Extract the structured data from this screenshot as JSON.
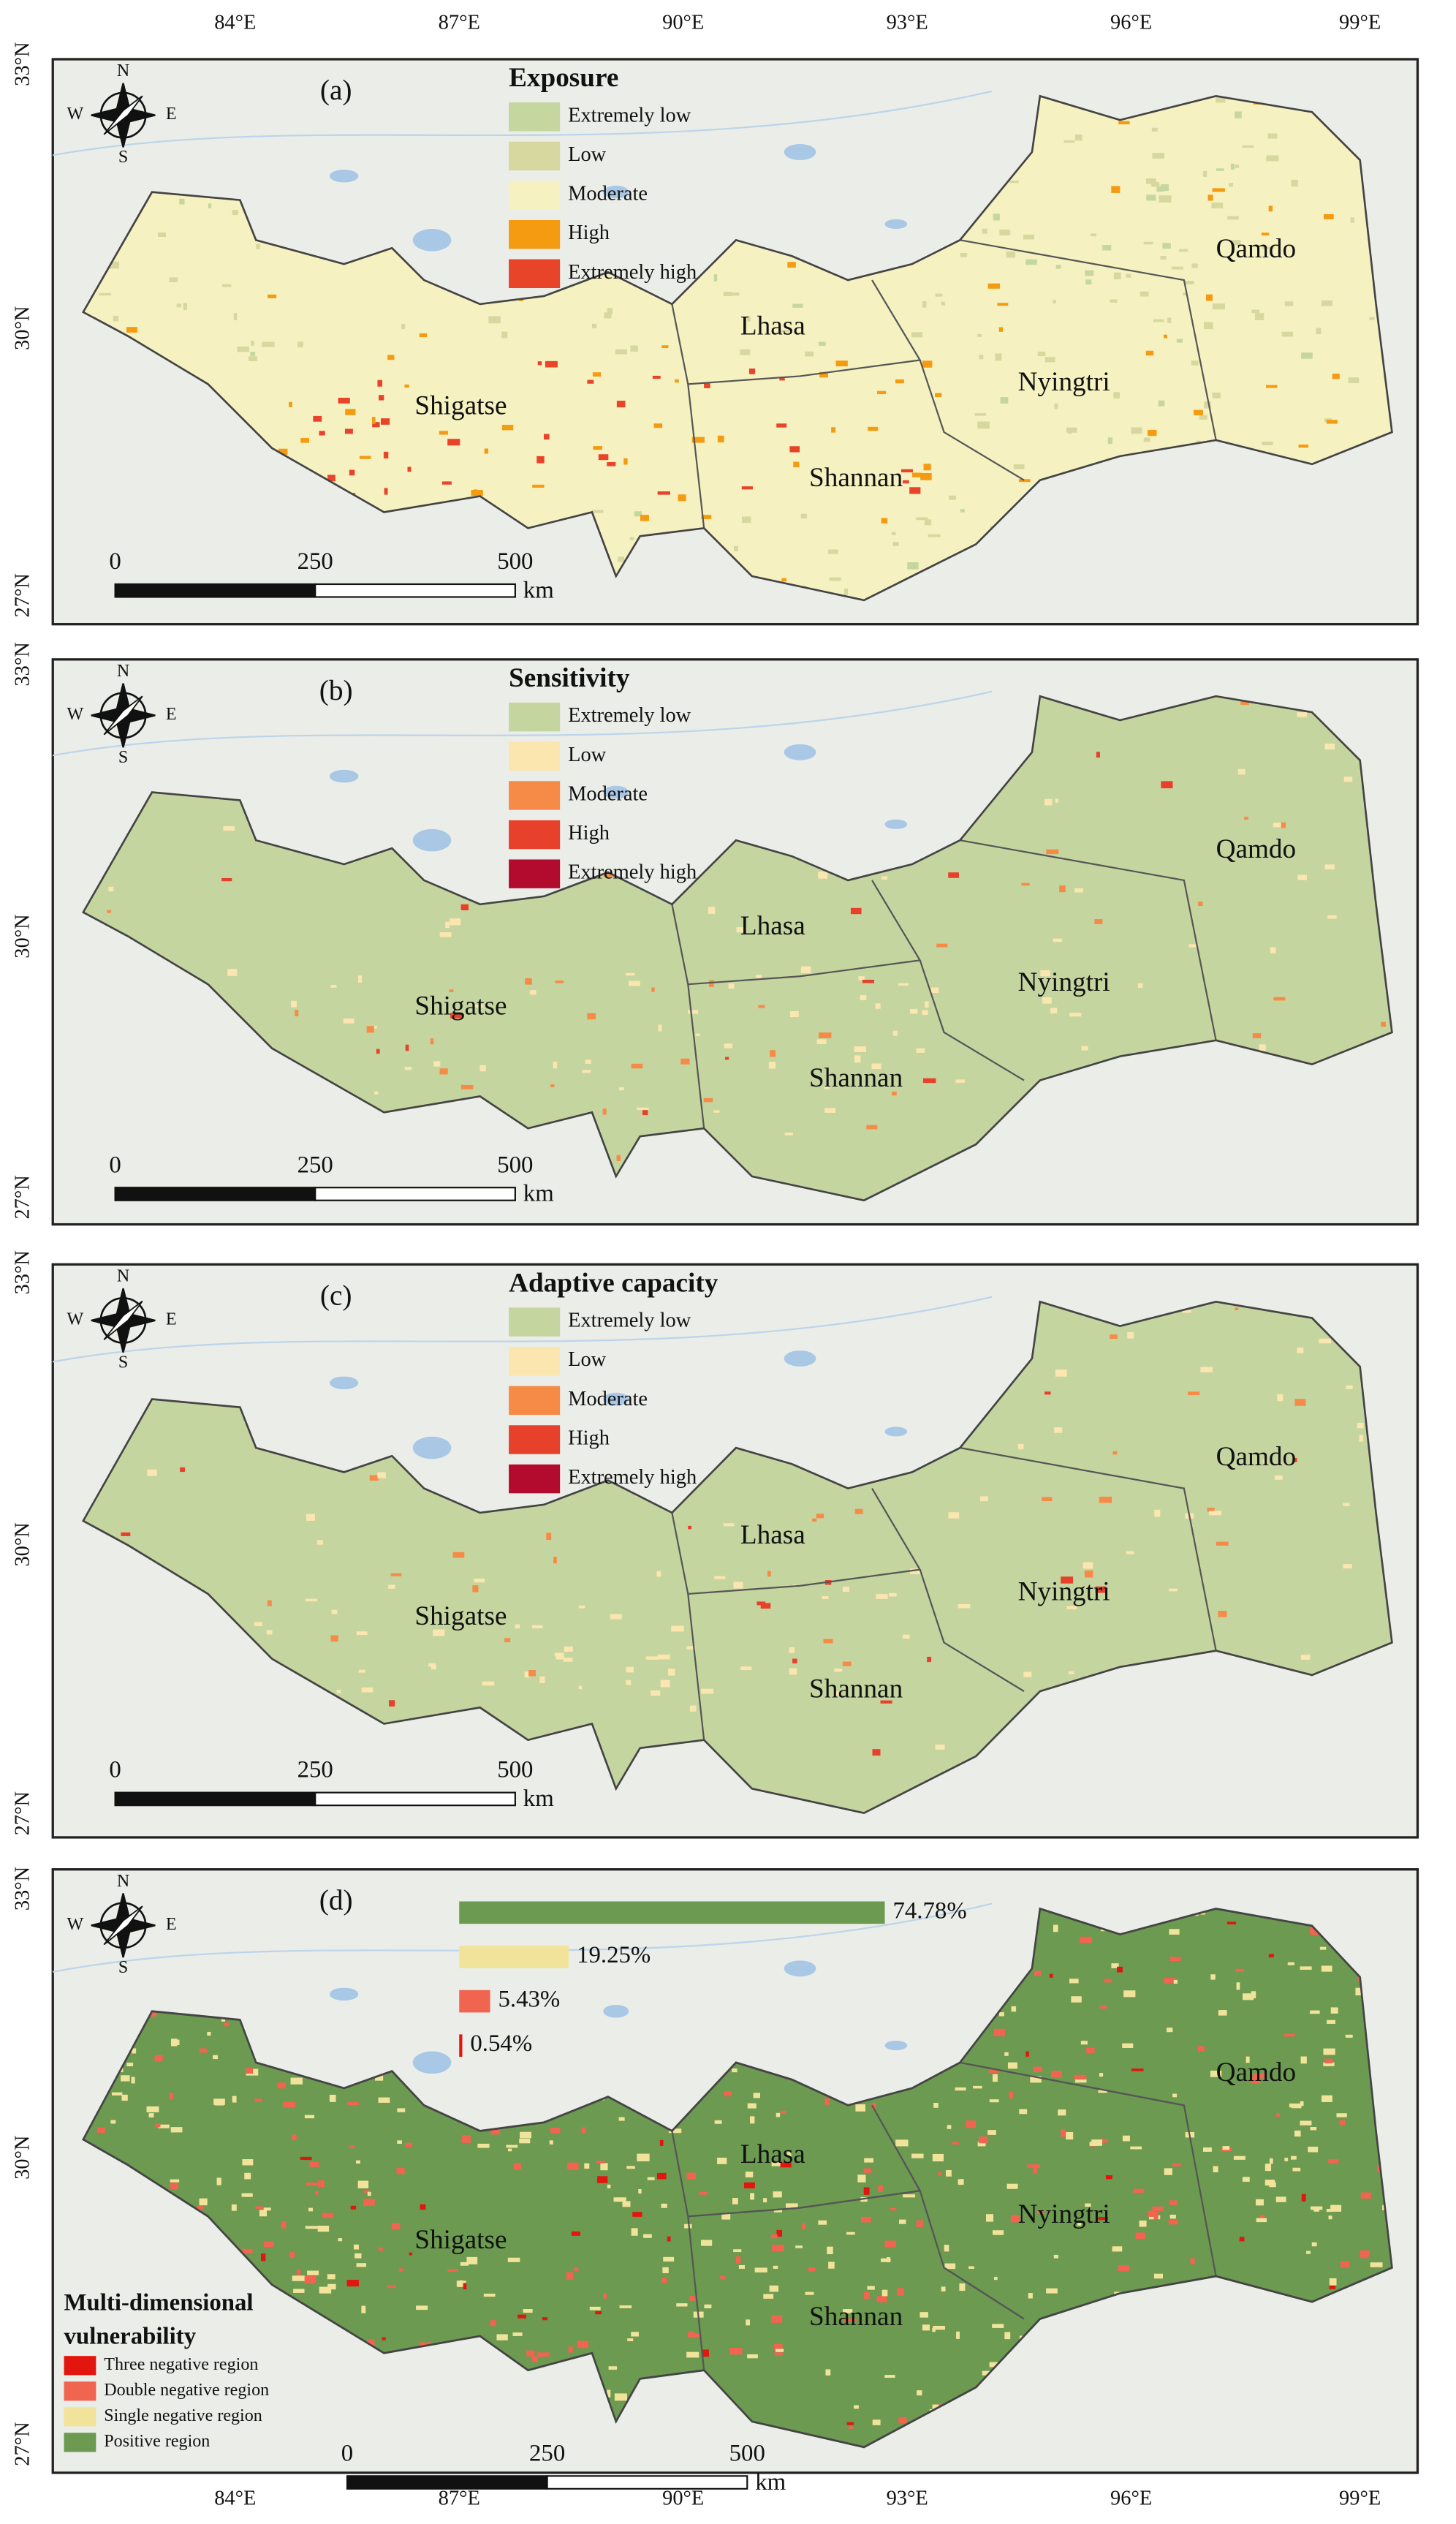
{
  "axes": {
    "lon_labels": [
      "84°E",
      "87°E",
      "90°E",
      "93°E",
      "96°E",
      "99°E"
    ],
    "lat_labels": [
      "33°N",
      "30°N",
      "27°N"
    ]
  },
  "compass": [
    "N",
    "S",
    "W",
    "E"
  ],
  "scale_bar": {
    "labels": [
      "0",
      "250",
      "500"
    ],
    "unit": "km"
  },
  "panels": [
    {
      "label": "(a)",
      "legend_title": "Exposure",
      "legend": [
        {
          "label": "Extremely low",
          "color": "#c5d79f"
        },
        {
          "label": "Low",
          "color": "#d7d8a0"
        },
        {
          "label": "Moderate",
          "color": "#f6f1c0"
        },
        {
          "label": "High",
          "color": "#f49b11"
        },
        {
          "label": "Extremely high",
          "color": "#e8442a"
        }
      ],
      "cities": [
        "Qamdo",
        "Lhasa",
        "Nyingtri",
        "Shigatse",
        "Shannan"
      ]
    },
    {
      "label": "(b)",
      "legend_title": "Sensitivity",
      "legend": [
        {
          "label": "Extremely low",
          "color": "#c5d5a0"
        },
        {
          "label": "Low",
          "color": "#fbe6b0"
        },
        {
          "label": "Moderate",
          "color": "#f68b48"
        },
        {
          "label": "High",
          "color": "#e8412b"
        },
        {
          "label": "Extremely high",
          "color": "#b30b2e"
        }
      ],
      "cities": [
        "Qamdo",
        "Lhasa",
        "Nyingtri",
        "Shigatse",
        "Shannan"
      ]
    },
    {
      "label": "(c)",
      "legend_title": "Adaptive capacity",
      "legend": [
        {
          "label": "Extremely low",
          "color": "#c5d5a0"
        },
        {
          "label": "Low",
          "color": "#fbe6b0"
        },
        {
          "label": "Moderate",
          "color": "#f68b48"
        },
        {
          "label": "High",
          "color": "#e8412b"
        },
        {
          "label": "Extremely high",
          "color": "#b30b2e"
        }
      ],
      "cities": [
        "Qamdo",
        "Lhasa",
        "Nyingtri",
        "Shigatse",
        "Shannan"
      ]
    },
    {
      "label": "(d)",
      "legend_title_lines": [
        "Multi-dimensional",
        "vulnerability"
      ],
      "legend": [
        {
          "label": "Three negative region",
          "color": "#e3160f"
        },
        {
          "label": "Double negative region",
          "color": "#f16450"
        },
        {
          "label": "Single negative region",
          "color": "#f2e39b"
        },
        {
          "label": "Positive region",
          "color": "#6b9a50"
        }
      ],
      "bars": {
        "values": [
          74.78,
          19.25,
          5.43,
          0.54
        ],
        "value_labels": [
          "74.78%",
          "19.25%",
          "5.43%",
          "0.54%"
        ],
        "colors": [
          "#6b9a50",
          "#f2e39b",
          "#f16450",
          "#e3160f"
        ]
      },
      "cities": [
        "Qamdo",
        "Lhasa",
        "Nyingtri",
        "Shigatse",
        "Shannan"
      ]
    }
  ]
}
